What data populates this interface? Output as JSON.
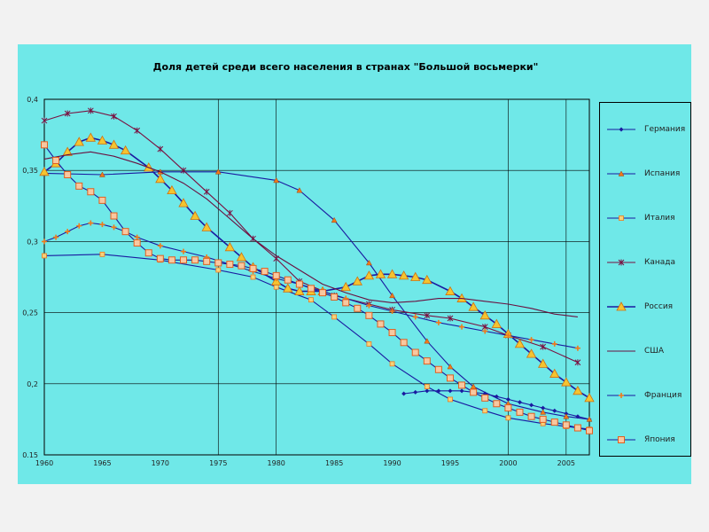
{
  "chart_data": {
    "type": "line",
    "title": "Доля детей среди всего населения в странах \"Большой восьмерки\"",
    "xlim": [
      1960,
      2007
    ],
    "ylim": [
      0.15,
      0.4
    ],
    "x_ticks": [
      "1960",
      "1965",
      "1970",
      "1975",
      "1980",
      "1985",
      "1990",
      "1995",
      "2000",
      "2005"
    ],
    "y_ticks": [
      "0,4",
      "0,35",
      "0,3",
      "0,25",
      "0,2",
      "0.15"
    ],
    "grid": true,
    "legend_position": "right",
    "series": [
      {
        "name": "Германия",
        "color": "#1a1aa0",
        "marker": "diamond",
        "x": [
          1991,
          1992,
          1993,
          1994,
          1995,
          1996,
          1997,
          1998,
          1999,
          2000,
          2001,
          2002,
          2003,
          2004,
          2005,
          2006,
          2007
        ],
        "y": [
          0.193,
          0.194,
          0.195,
          0.195,
          0.195,
          0.195,
          0.194,
          0.193,
          0.191,
          0.189,
          0.187,
          0.185,
          0.183,
          0.181,
          0.179,
          0.177,
          0.175
        ]
      },
      {
        "name": "Испания",
        "color": "#1a1aa0",
        "marker": "triangle",
        "x": [
          1960,
          1965,
          1970,
          1975,
          1980,
          1982,
          1985,
          1988,
          1990,
          1993,
          1995,
          1997,
          2000,
          2003,
          2005,
          2007
        ],
        "y": [
          0.348,
          0.347,
          0.349,
          0.349,
          0.343,
          0.336,
          0.315,
          0.285,
          0.262,
          0.23,
          0.212,
          0.198,
          0.186,
          0.18,
          0.177,
          0.175
        ]
      },
      {
        "name": "Италия",
        "color": "#1a1aa0",
        "marker": "square",
        "x": [
          1960,
          1965,
          1970,
          1975,
          1978,
          1980,
          1983,
          1985,
          1988,
          1990,
          1993,
          1995,
          1998,
          2000,
          2003,
          2005,
          2007
        ],
        "y": [
          0.29,
          0.291,
          0.287,
          0.28,
          0.275,
          0.268,
          0.259,
          0.247,
          0.228,
          0.214,
          0.198,
          0.189,
          0.181,
          0.176,
          0.172,
          0.17,
          0.168
        ]
      },
      {
        "name": "Канада",
        "color": "#7a1040",
        "marker": "star",
        "x": [
          1960,
          1962,
          1964,
          1966,
          1968,
          1970,
          1972,
          1974,
          1976,
          1978,
          1980,
          1982,
          1985,
          1988,
          1990,
          1993,
          1995,
          1998,
          2000,
          2003,
          2006
        ],
        "y": [
          0.385,
          0.39,
          0.392,
          0.388,
          0.378,
          0.365,
          0.35,
          0.335,
          0.32,
          0.302,
          0.288,
          0.272,
          0.262,
          0.256,
          0.252,
          0.248,
          0.246,
          0.24,
          0.234,
          0.226,
          0.215
        ]
      },
      {
        "name": "Россия",
        "color": "#1a1aa0",
        "marker": "big-triangle",
        "x": [
          1960,
          1961,
          1962,
          1963,
          1964,
          1965,
          1966,
          1967,
          1969,
          1970,
          1971,
          1972,
          1973,
          1974,
          1976,
          1977,
          1978,
          1980,
          1981,
          1982,
          1983,
          1984,
          1986,
          1987,
          1988,
          1989,
          1990,
          1991,
          1992,
          1993,
          1995,
          1996,
          1997,
          1998,
          1999,
          2000,
          2001,
          2002,
          2003,
          2004,
          2005,
          2006,
          2007
        ],
        "y": [
          0.349,
          0.355,
          0.363,
          0.37,
          0.373,
          0.371,
          0.368,
          0.364,
          0.352,
          0.344,
          0.336,
          0.327,
          0.318,
          0.31,
          0.296,
          0.289,
          0.282,
          0.272,
          0.267,
          0.265,
          0.265,
          0.265,
          0.268,
          0.272,
          0.276,
          0.277,
          0.277,
          0.276,
          0.275,
          0.273,
          0.265,
          0.26,
          0.254,
          0.248,
          0.242,
          0.235,
          0.228,
          0.221,
          0.214,
          0.207,
          0.201,
          0.195,
          0.19
        ]
      },
      {
        "name": "США",
        "color": "#6a1040",
        "marker": "none",
        "x": [
          1960,
          1962,
          1964,
          1966,
          1968,
          1970,
          1972,
          1974,
          1976,
          1978,
          1980,
          1982,
          1984,
          1986,
          1988,
          1990,
          1992,
          1994,
          1996,
          1998,
          2000,
          2002,
          2004,
          2006
        ],
        "y": [
          0.358,
          0.361,
          0.363,
          0.36,
          0.355,
          0.349,
          0.341,
          0.33,
          0.316,
          0.302,
          0.29,
          0.28,
          0.27,
          0.264,
          0.259,
          0.257,
          0.258,
          0.26,
          0.26,
          0.258,
          0.256,
          0.253,
          0.249,
          0.247
        ]
      },
      {
        "name": "Франция",
        "color": "#1a1aa0",
        "marker": "diamond-orange",
        "x": [
          1960,
          1961,
          1962,
          1963,
          1964,
          1965,
          1966,
          1967,
          1968,
          1970,
          1972,
          1974,
          1976,
          1978,
          1980,
          1982,
          1984,
          1986,
          1988,
          1990,
          1992,
          1994,
          1996,
          1998,
          2000,
          2002,
          2004,
          2006
        ],
        "y": [
          0.3,
          0.303,
          0.307,
          0.311,
          0.313,
          0.312,
          0.31,
          0.307,
          0.303,
          0.297,
          0.293,
          0.289,
          0.284,
          0.279,
          0.274,
          0.27,
          0.265,
          0.26,
          0.255,
          0.251,
          0.247,
          0.243,
          0.24,
          0.237,
          0.234,
          0.231,
          0.228,
          0.225
        ]
      },
      {
        "name": "Япония",
        "color": "#1a1aa0",
        "marker": "big-square",
        "x": [
          1960,
          1961,
          1962,
          1963,
          1964,
          1965,
          1966,
          1967,
          1968,
          1969,
          1970,
          1971,
          1972,
          1973,
          1974,
          1975,
          1976,
          1977,
          1978,
          1979,
          1980,
          1981,
          1982,
          1983,
          1984,
          1985,
          1986,
          1987,
          1988,
          1989,
          1990,
          1991,
          1992,
          1993,
          1994,
          1995,
          1996,
          1997,
          1998,
          1999,
          2000,
          2001,
          2002,
          2003,
          2004,
          2005,
          2006,
          2007
        ],
        "y": [
          0.368,
          0.357,
          0.347,
          0.339,
          0.335,
          0.329,
          0.318,
          0.307,
          0.299,
          0.292,
          0.288,
          0.287,
          0.287,
          0.287,
          0.286,
          0.285,
          0.284,
          0.283,
          0.281,
          0.279,
          0.276,
          0.273,
          0.27,
          0.267,
          0.264,
          0.261,
          0.257,
          0.253,
          0.248,
          0.242,
          0.236,
          0.229,
          0.222,
          0.216,
          0.21,
          0.204,
          0.199,
          0.194,
          0.19,
          0.186,
          0.183,
          0.18,
          0.177,
          0.175,
          0.173,
          0.171,
          0.169,
          0.167
        ]
      }
    ]
  }
}
